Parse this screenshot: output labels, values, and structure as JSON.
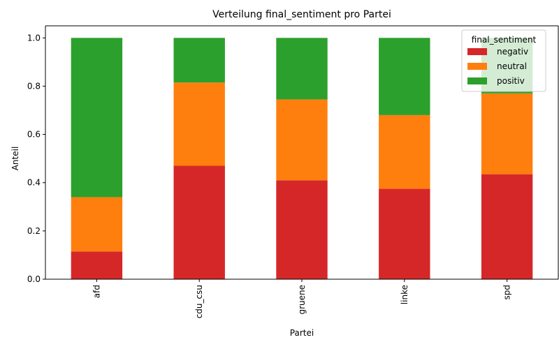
{
  "chart_data": {
    "type": "bar",
    "stacked": true,
    "title": "Verteilung final_sentiment pro Partei",
    "xlabel": "Partei",
    "ylabel": "Anteil",
    "ylim": [
      0,
      1.05
    ],
    "yticks": [
      "0.0",
      "0.2",
      "0.4",
      "0.6",
      "0.8",
      "1.0"
    ],
    "categories": [
      "afd",
      "cdu_csu",
      "gruene",
      "linke",
      "spd"
    ],
    "series": [
      {
        "name": "negativ",
        "color": "#d62728",
        "values": [
          0.115,
          0.47,
          0.41,
          0.375,
          0.435
        ]
      },
      {
        "name": "neutral",
        "color": "#ff7f0e",
        "values": [
          0.225,
          0.345,
          0.335,
          0.305,
          0.335
        ]
      },
      {
        "name": "positiv",
        "color": "#2ca02c",
        "values": [
          0.66,
          0.185,
          0.255,
          0.32,
          0.23
        ]
      }
    ],
    "legend": {
      "title": "final_sentiment",
      "position": "top-right"
    },
    "grid": false
  }
}
